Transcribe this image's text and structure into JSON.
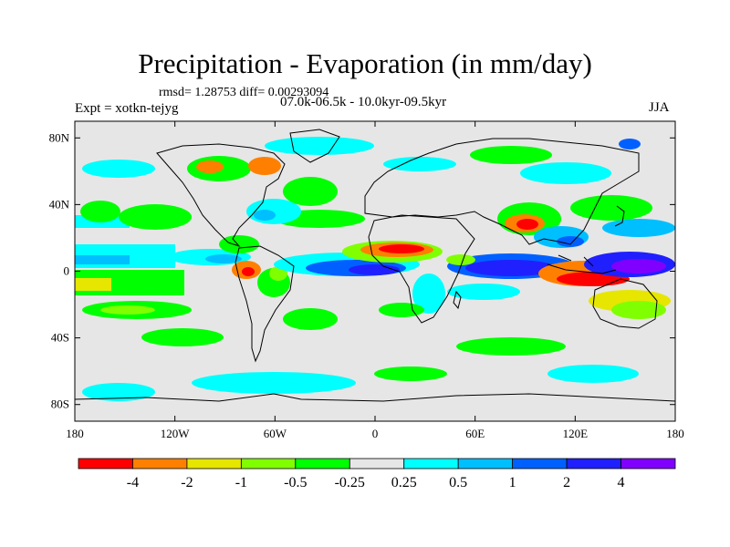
{
  "title": "Precipitation - Evaporation (in mm/day)",
  "stats": "rmsd= 1.28753 diff= 0.00293094",
  "experiment": "Expt = xotkn-tejyg",
  "period": "07.0k-06.5k - 10.0kyr-09.5kyr",
  "season": "JJA",
  "map": {
    "projection": "cylindrical-equidistant",
    "lon_range": [
      -180,
      180
    ],
    "lat_range": [
      -90,
      90
    ],
    "lat_ticks": [
      {
        "value": 80,
        "label": "80N"
      },
      {
        "value": 40,
        "label": "40N"
      },
      {
        "value": 0,
        "label": "0"
      },
      {
        "value": -40,
        "label": "40S"
      },
      {
        "value": -80,
        "label": "80S"
      }
    ],
    "lon_ticks": [
      {
        "value": -180,
        "label": "180"
      },
      {
        "value": -120,
        "label": "120W"
      },
      {
        "value": -60,
        "label": "60W"
      },
      {
        "value": 0,
        "label": "0"
      },
      {
        "value": 60,
        "label": "60E"
      },
      {
        "value": 120,
        "label": "120E"
      },
      {
        "value": 180,
        "label": "180"
      }
    ],
    "background_color": "#e6e6e6"
  },
  "colorbar": {
    "colors": [
      "#ff0000",
      "#ff8000",
      "#e6e600",
      "#80ff00",
      "#00ff00",
      "#e6e6e6",
      "#00ffff",
      "#00bfff",
      "#0060ff",
      "#2020ff",
      "#8000ff"
    ],
    "levels": [
      "-4",
      "-2",
      "-1",
      "-0.5",
      "-0.25",
      "0.25",
      "0.5",
      "1",
      "2",
      "4"
    ]
  }
}
